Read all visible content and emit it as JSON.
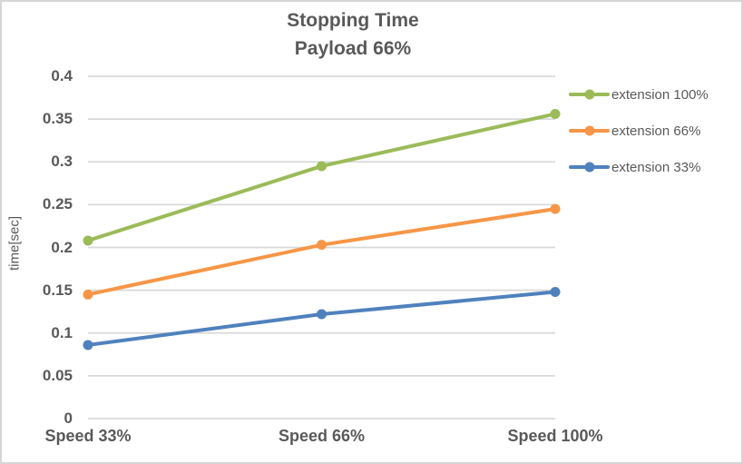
{
  "chart_data": {
    "type": "line",
    "title": "Stopping Time",
    "subtitle": "Payload 66%",
    "xlabel": "",
    "ylabel": "time[sec]",
    "categories": [
      "Speed 33%",
      "Speed 66%",
      "Speed 100%"
    ],
    "series": [
      {
        "name": "extension 100%",
        "color": "#9BBB59",
        "values": [
          0.208,
          0.295,
          0.356
        ]
      },
      {
        "name": "extension 66%",
        "color": "#F79646",
        "values": [
          0.145,
          0.203,
          0.245
        ]
      },
      {
        "name": "extension 33%",
        "color": "#4F81BD",
        "values": [
          0.086,
          0.122,
          0.148
        ]
      }
    ],
    "ylim": [
      0,
      0.4
    ],
    "y_ticks": [
      "0.4",
      "0.35",
      "0.3",
      "0.25",
      "0.2",
      "0.15",
      "0.1",
      "0.05",
      "0"
    ],
    "grid": true,
    "marker": "circle",
    "legend_position": "right",
    "style": {
      "text_color": "#595959",
      "gridline_color": "#D9D9D9",
      "axis_line_color": "#D9D9D9",
      "border_color": "#D6D6D6",
      "background": "#FFFFFF"
    }
  }
}
